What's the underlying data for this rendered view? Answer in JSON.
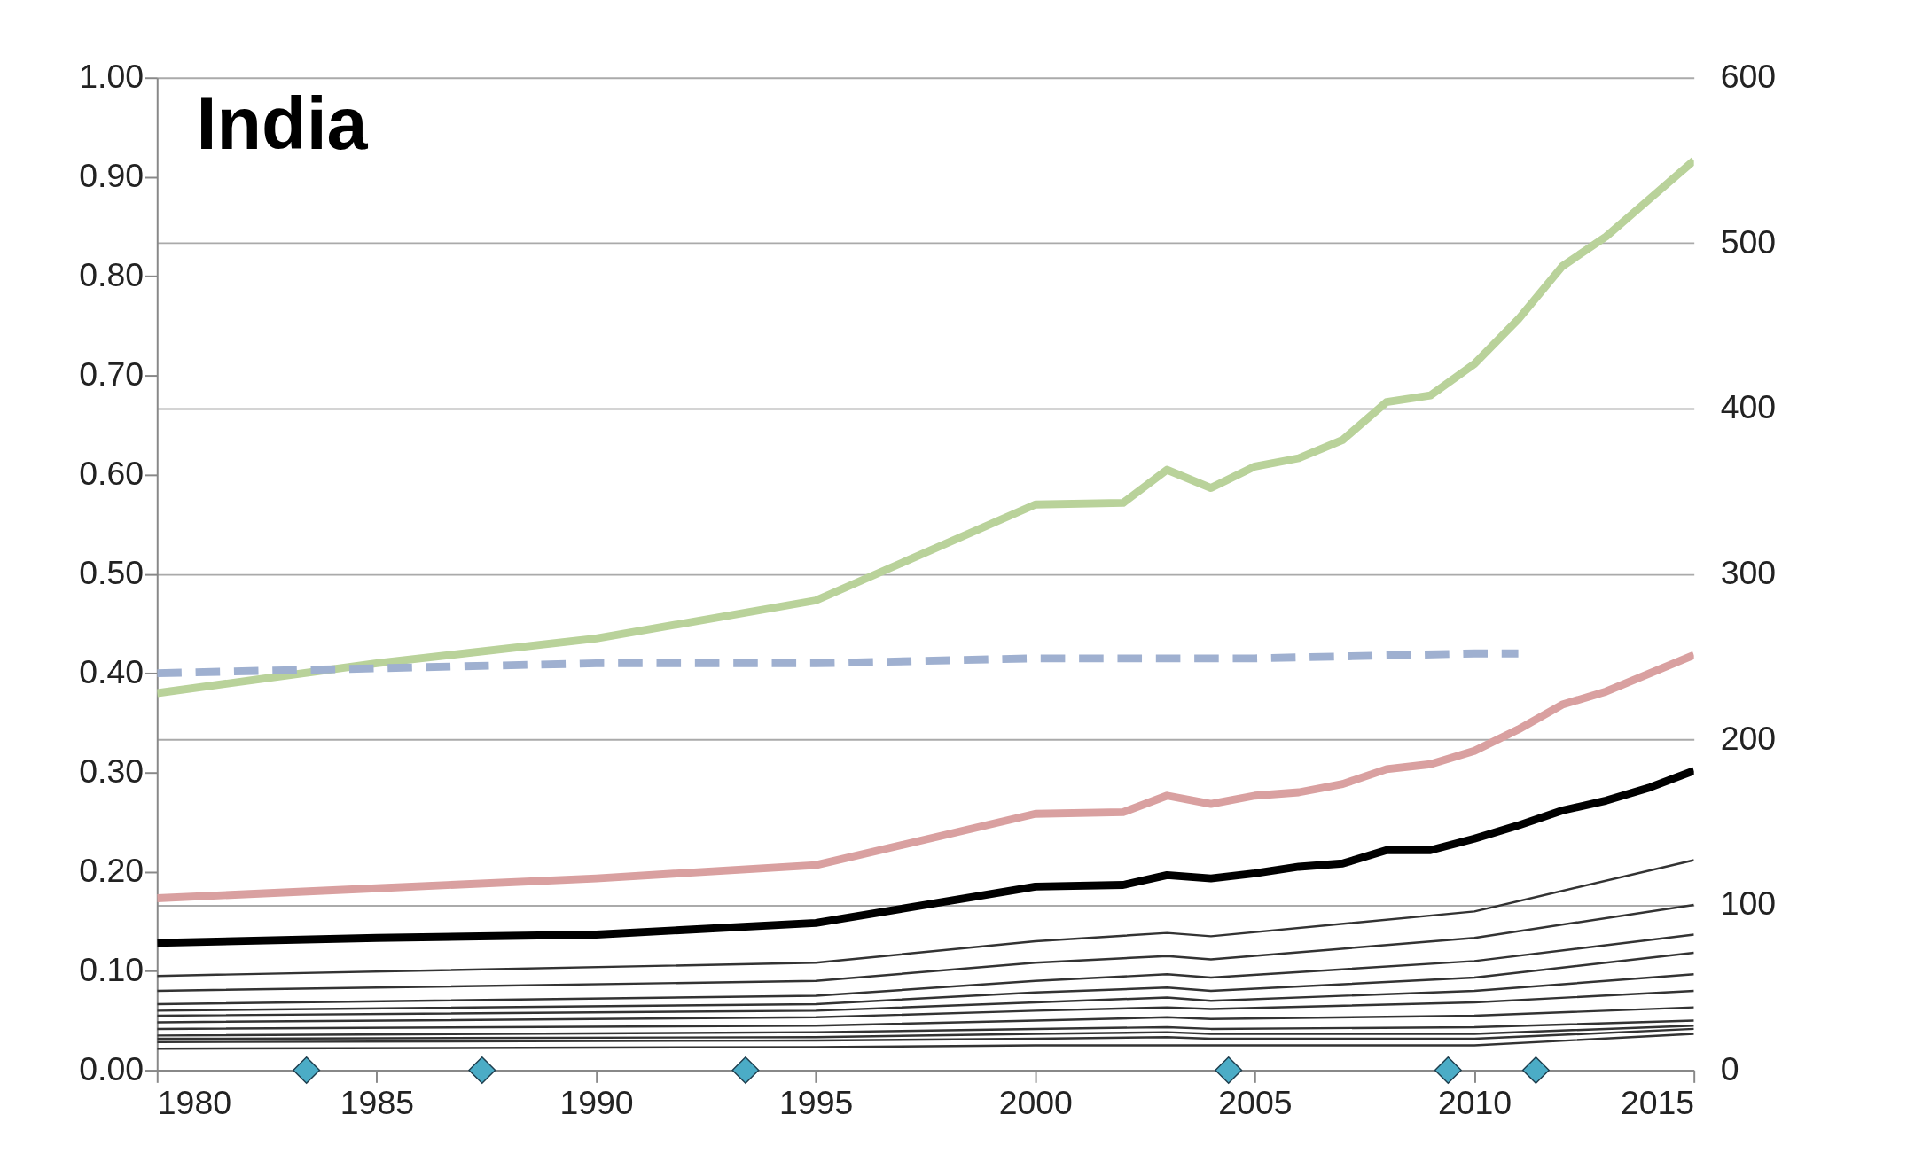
{
  "chart_data": {
    "type": "line",
    "title": "India",
    "xlim": [
      1980,
      2015
    ],
    "xticks": [
      1980,
      1985,
      1990,
      1995,
      2000,
      2005,
      2010,
      2015
    ],
    "ylim": [
      0,
      1
    ],
    "yticks": [
      {
        "value": 0,
        "label": "0.00"
      },
      {
        "value": 0.1,
        "label": "0.10"
      },
      {
        "value": 0.2,
        "label": "0.20"
      },
      {
        "value": 0.3,
        "label": "0.30"
      },
      {
        "value": 0.4,
        "label": "0.40"
      },
      {
        "value": 0.5,
        "label": "0.50"
      },
      {
        "value": 0.6,
        "label": "0.60"
      },
      {
        "value": 0.7,
        "label": "0.70"
      },
      {
        "value": 0.8,
        "label": "0.80"
      },
      {
        "value": 0.9,
        "label": "0.90"
      },
      {
        "value": 1,
        "label": "1.00"
      }
    ],
    "y2lim": [
      0,
      600
    ],
    "y2ticks": [
      0,
      100,
      200,
      300,
      400,
      500,
      600
    ],
    "grid": "y2",
    "marker": "none",
    "line_style": "solid",
    "series": [
      {
        "color": "#b9d29a",
        "axis": "y2",
        "x": [
          1980,
          1985,
          1990,
          1995,
          2000,
          2002,
          2003,
          2004,
          2005,
          2006,
          2007,
          2008,
          2009,
          2010,
          2011,
          2012,
          2013,
          2014,
          2015
        ],
        "values": [
          228,
          246,
          261,
          284,
          342,
          343,
          363,
          352,
          365,
          370,
          381,
          404,
          408,
          427,
          454,
          486,
          504,
          527,
          550
        ]
      },
      {
        "color": "#9fb0d0",
        "line_style": "dashed",
        "x": [
          1980,
          1985,
          1990,
          1995,
          2000,
          2005,
          2010,
          2011
        ],
        "values": [
          0.4,
          0.405,
          0.41,
          0.41,
          0.415,
          0.415,
          0.42,
          0.42
        ]
      },
      {
        "color": "#d9a0a0",
        "axis": "y2",
        "x": [
          1980,
          1985,
          1990,
          1995,
          2000,
          2002,
          2003,
          2004,
          2005,
          2006,
          2007,
          2008,
          2009,
          2010,
          2011,
          2012,
          2013,
          2014,
          2015
        ],
        "values": [
          104,
          110,
          116,
          124,
          155,
          156,
          166,
          161,
          166,
          168,
          173,
          182,
          185,
          193,
          206,
          221,
          229,
          240,
          251
        ]
      },
      {
        "color": "#000000",
        "axis": "y2",
        "x": [
          1980,
          1985,
          1990,
          1995,
          2000,
          2002,
          2003,
          2004,
          2005,
          2006,
          2007,
          2008,
          2009,
          2010,
          2011,
          2012,
          2013,
          2014,
          2015
        ],
        "values": [
          77,
          80,
          82,
          89,
          111,
          112,
          118,
          116,
          119,
          123,
          125,
          133,
          133,
          140,
          148,
          157,
          163,
          171,
          181
        ]
      },
      {
        "color": "#333333",
        "axis": "y2",
        "x": [
          1980,
          1995,
          2000,
          2003,
          2004,
          2010,
          2015
        ],
        "values": [
          57,
          65,
          78,
          83,
          81,
          96,
          127
        ]
      },
      {
        "color": "#333333",
        "axis": "y2",
        "x": [
          1980,
          1995,
          2000,
          2003,
          2004,
          2010,
          2015
        ],
        "values": [
          48,
          54,
          65,
          69,
          67,
          80,
          100
        ]
      },
      {
        "color": "#333333",
        "axis": "y2",
        "x": [
          1980,
          1995,
          2000,
          2003,
          2004,
          2010,
          2015
        ],
        "values": [
          40,
          45,
          54,
          58,
          56,
          66,
          82
        ]
      },
      {
        "color": "#333333",
        "axis": "y2",
        "x": [
          1980,
          1995,
          2000,
          2003,
          2004,
          2010,
          2015
        ],
        "values": [
          36,
          40,
          47,
          50,
          48,
          56,
          71
        ]
      },
      {
        "color": "#333333",
        "axis": "y2",
        "x": [
          1980,
          1995,
          2000,
          2003,
          2004,
          2010,
          2015
        ],
        "values": [
          33,
          36,
          41,
          44,
          42,
          48,
          58
        ]
      },
      {
        "color": "#333333",
        "axis": "y2",
        "x": [
          1980,
          1995,
          2000,
          2003,
          2004,
          2010,
          2015
        ],
        "values": [
          29,
          32,
          36,
          38,
          37,
          41,
          48
        ]
      },
      {
        "color": "#333333",
        "axis": "y2",
        "x": [
          1980,
          1995,
          2000,
          2003,
          2004,
          2010,
          2015
        ],
        "values": [
          25,
          27,
          30,
          32,
          31,
          33,
          38
        ]
      },
      {
        "color": "#333333",
        "axis": "y2",
        "x": [
          1980,
          1995,
          2000,
          2003,
          2004,
          2010,
          2015
        ],
        "values": [
          21,
          23,
          25,
          26,
          25,
          26,
          30
        ]
      },
      {
        "color": "#333333",
        "axis": "y2",
        "x": [
          1980,
          1995,
          2000,
          2003,
          2004,
          2010,
          2015
        ],
        "values": [
          19,
          20,
          22,
          23,
          22,
          22,
          27
        ]
      },
      {
        "color": "#333333",
        "axis": "y2",
        "x": [
          1980,
          1995,
          2000,
          2003,
          2004,
          2010,
          2015
        ],
        "values": [
          17,
          18,
          19,
          20,
          19,
          19,
          25
        ]
      },
      {
        "color": "#333333",
        "axis": "y2",
        "x": [
          1980,
          1995,
          2000,
          2003,
          2004,
          2010,
          2015
        ],
        "values": [
          13,
          14,
          15,
          15,
          15,
          15,
          22
        ]
      },
      {
        "type": "scatter",
        "marker": "diamond",
        "color": "#4bacc6",
        "x": [
          1983.4,
          1987.4,
          1993.4,
          2004.4,
          2009.4,
          2011.4
        ],
        "values": [
          0,
          0,
          0,
          0,
          0,
          0
        ]
      }
    ]
  }
}
